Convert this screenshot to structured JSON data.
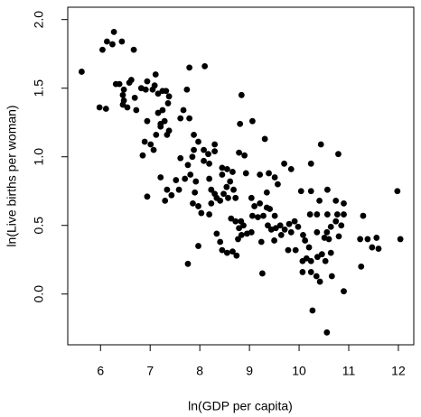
{
  "chart_data": {
    "type": "scatter",
    "xlabel": "ln(GDP per capita)",
    "ylabel": "ln(Live births per woman)",
    "color": "#000000",
    "xlim": [
      5.34,
      12.31
    ],
    "ylim": [
      -0.37,
      2.09
    ],
    "xticks": [
      6,
      7,
      8,
      9,
      10,
      11,
      12
    ],
    "yticks": [
      {
        "value": 0,
        "label": "0.0"
      },
      {
        "value": 0.5,
        "label": "0.5"
      },
      {
        "value": 1,
        "label": "1.0"
      },
      {
        "value": 1.5,
        "label": "1.5"
      },
      {
        "value": 2,
        "label": "2.0"
      }
    ],
    "x": [
      5.62,
      5.98,
      6.11,
      6.04,
      6.13,
      6.24,
      6.27,
      6.43,
      6.67,
      6.31,
      6.38,
      6.47,
      6.45,
      6.47,
      6.45,
      6.54,
      6.58,
      6.62,
      6.69,
      6.72,
      6.82,
      6.91,
      6.94,
      7.05,
      7.11,
      7.09,
      7.16,
      7.25,
      7.32,
      7.38,
      7.36,
      7.25,
      7.16,
      7.21,
      7.29,
      7.21,
      7.38,
      7.34,
      7.12,
      6.94,
      6.89,
      7.01,
      7.07,
      6.85,
      6.94,
      7.21,
      7.34,
      7.43,
      7.3,
      7.58,
      7.52,
      7.61,
      7.61,
      7.67,
      7.74,
      7.79,
      8.1,
      7.79,
      7.88,
      7.97,
      7.88,
      7.85,
      7.76,
      7.81,
      7.7,
      7.92,
      7.9,
      7.86,
      7.97,
      8.03,
      8.19,
      7.97,
      7.76,
      8.08,
      8.17,
      8.08,
      8.19,
      8.3,
      8.3,
      8.19,
      8.23,
      8.3,
      8.34,
      8.23,
      8.45,
      8.45,
      8.55,
      8.66,
      8.61,
      8.54,
      8.68,
      8.48,
      8.41,
      8.57,
      8.72,
      8.63,
      8.34,
      8.41,
      8.45,
      8.55,
      8.66,
      8.74,
      8.77,
      8.83,
      8.72,
      8.79,
      8.88,
      8.95,
      8.84,
      9.04,
      9.06,
      9.1,
      9.17,
      8.84,
      8.81,
      9.06,
      8.79,
      8.9,
      8.93,
      9.31,
      9.21,
      9.39,
      9.51,
      9.7,
      9.84,
      9.57,
      9.35,
      9.04,
      9.21,
      9.35,
      9.41,
      9.28,
      9.51,
      9.37,
      9.44,
      9.53,
      9.62,
      9.71,
      9.8,
      9.91,
      9.98,
      9.84,
      9.64,
      9.5,
      9.24,
      9.78,
      9.93,
      9.26,
      10.04,
      10.24,
      10.24,
      10.44,
      10.79,
      10.57,
      10.41,
      10.74,
      10.9,
      10.22,
      10.36,
      10.57,
      10.77,
      10.9,
      10.74,
      10.85,
      10.64,
      10.56,
      10.36,
      10.08,
      10.12,
      10.51,
      10.6,
      10.8,
      10.2,
      10.15,
      10.07,
      10.24,
      10.37,
      10.46,
      10.53,
      10.64,
      10.07,
      10.24,
      10.35,
      10.42,
      10.66,
      10.9,
      10.27,
      10.56,
      11.29,
      11.38,
      11.23,
      11.56,
      11.47,
      11.25,
      11.98,
      12.04,
      11.6
    ],
    "y": [
      1.62,
      1.36,
      1.35,
      1.78,
      1.84,
      1.82,
      1.91,
      1.84,
      1.78,
      1.53,
      1.53,
      1.49,
      1.45,
      1.41,
      1.38,
      1.36,
      1.54,
      1.56,
      1.43,
      1.34,
      1.5,
      1.49,
      1.55,
      1.49,
      1.6,
      1.52,
      1.46,
      1.48,
      1.48,
      1.44,
      1.39,
      1.34,
      1.32,
      1.24,
      1.26,
      1.22,
      1.19,
      1.16,
      1.16,
      1.26,
      1.11,
      1.09,
      1.05,
      1.01,
      0.71,
      0.85,
      0.76,
      0.72,
      0.68,
      0.76,
      0.83,
      0.99,
      1.28,
      1.34,
      1.49,
      1.65,
      1.66,
      1.28,
      1.16,
      1.11,
      1.05,
      1.0,
      0.94,
      0.87,
      0.84,
      0.82,
      0.74,
      0.66,
      0.64,
      0.59,
      0.58,
      0.35,
      0.22,
      1.05,
      1.02,
      0.97,
      0.95,
      1.04,
      1.09,
      0.84,
      0.76,
      0.73,
      0.7,
      0.66,
      0.92,
      0.87,
      0.91,
      0.89,
      0.82,
      0.78,
      0.76,
      0.73,
      0.68,
      0.7,
      0.7,
      0.55,
      0.44,
      0.38,
      0.32,
      0.3,
      0.31,
      0.28,
      0.4,
      0.53,
      0.53,
      0.48,
      0.5,
      0.44,
      0.43,
      0.45,
      0.57,
      0.64,
      0.56,
      1.45,
      1.24,
      1.26,
      1.03,
      1.01,
      0.88,
      1.13,
      0.87,
      0.88,
      0.85,
      0.95,
      0.91,
      0.8,
      0.74,
      0.7,
      0.66,
      0.63,
      0.62,
      0.57,
      0.57,
      0.5,
      0.47,
      0.48,
      0.5,
      0.47,
      0.51,
      0.53,
      0.49,
      0.45,
      0.43,
      0.39,
      0.38,
      0.32,
      0.32,
      0.15,
      0.75,
      0.75,
      0.95,
      1.09,
      1.02,
      0.76,
      0.68,
      0.68,
      0.66,
      0.58,
      0.58,
      0.58,
      0.58,
      0.58,
      0.53,
      0.5,
      0.49,
      0.45,
      0.45,
      0.43,
      0.39,
      0.41,
      0.4,
      0.42,
      0.34,
      0.26,
      0.24,
      0.24,
      0.27,
      0.29,
      0.24,
      0.3,
      0.16,
      0.16,
      0.13,
      0.09,
      0.13,
      0.02,
      -0.12,
      -0.28,
      0.57,
      0.4,
      0.4,
      0.41,
      0.34,
      0.2,
      0.75,
      0.4,
      0.33
    ]
  }
}
